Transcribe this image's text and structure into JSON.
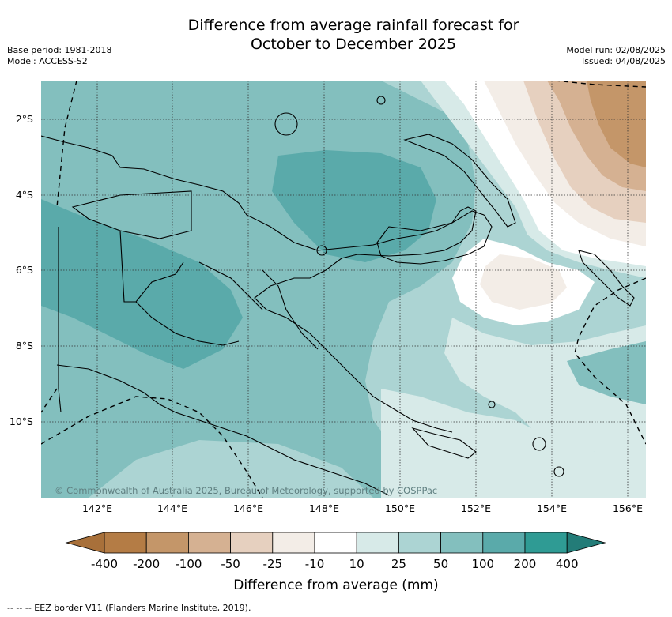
{
  "title_line1": "Difference from average rainfall forecast for",
  "title_line2": "October to December 2025",
  "base_period": "Base period: 1981-2018",
  "model": "Model: ACCESS-S2",
  "model_run": "Model run: 02/08/2025",
  "issued": "Issued: 04/08/2025",
  "lat_labels": [
    "2°S",
    "4°S",
    "6°S",
    "8°S",
    "10°S"
  ],
  "lon_labels": [
    "142°E",
    "144°E",
    "146°E",
    "148°E",
    "150°E",
    "152°E",
    "154°E",
    "156°E"
  ],
  "copyright": "© Commonwealth of Australia 2025, Bureau of Meteorology, supported by COSPPac",
  "colorbar": {
    "label": "Difference from average (mm)",
    "ticks": [
      "-400",
      "-200",
      "-100",
      "-50",
      "-25",
      "-10",
      "10",
      "25",
      "50",
      "100",
      "200",
      "400"
    ],
    "colors": [
      "#a8703a",
      "#b47c45",
      "#c49669",
      "#d5b192",
      "#e6d0bf",
      "#f3ede7",
      "#ffffff",
      "#d7eae8",
      "#acd4d3",
      "#83bfbe",
      "#5aaaaa",
      "#2f9b94",
      "#237c78"
    ]
  },
  "footnote": "-- -- -- EEZ border V11 (Flanders Marine Institute, 2019)."
}
